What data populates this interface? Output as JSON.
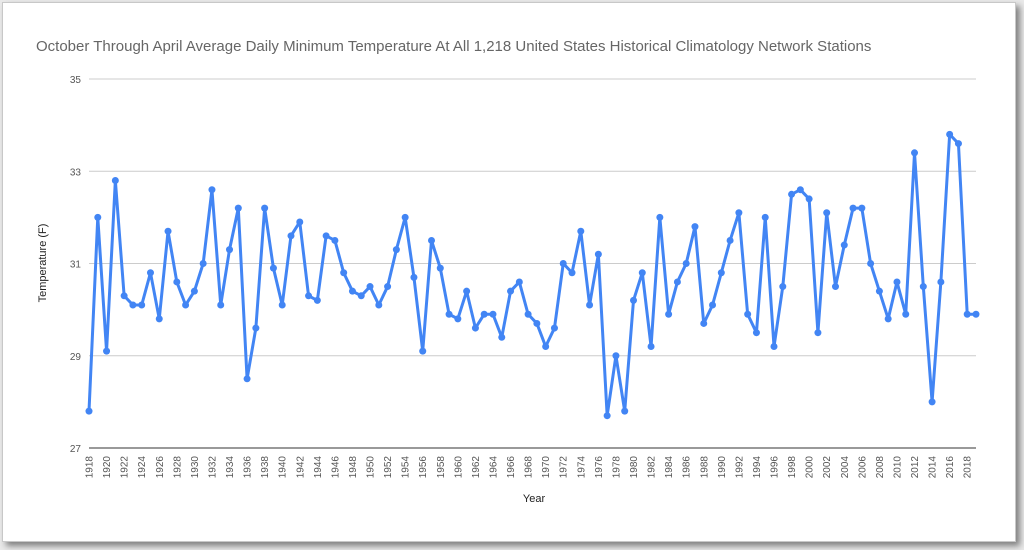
{
  "chart_data": {
    "type": "line",
    "title": "October Through April Average Daily Minimum Temperature At All 1,218 United States Historical Climatology Network Stations",
    "xlabel": "Year",
    "ylabel": "Temperature (F)",
    "ylim": [
      27,
      35
    ],
    "yticks": [
      27,
      29,
      31,
      33,
      35
    ],
    "xticks": [
      1918,
      1920,
      1922,
      1924,
      1926,
      1928,
      1930,
      1932,
      1934,
      1936,
      1938,
      1940,
      1942,
      1944,
      1946,
      1948,
      1950,
      1952,
      1954,
      1956,
      1958,
      1960,
      1962,
      1964,
      1966,
      1968,
      1970,
      1972,
      1974,
      1976,
      1978,
      1980,
      1982,
      1984,
      1986,
      1988,
      1990,
      1992,
      1994,
      1996,
      1998,
      2000,
      2002,
      2004,
      2006,
      2008,
      2010,
      2012,
      2014,
      2016,
      2018
    ],
    "grid": true,
    "color": "#4285f4",
    "series": [
      {
        "x": [
          1918,
          1919,
          1920,
          1921,
          1922,
          1923,
          1924,
          1925,
          1926,
          1927,
          1928,
          1929,
          1930,
          1931,
          1932,
          1933,
          1934,
          1935,
          1936,
          1937,
          1938,
          1939,
          1940,
          1941,
          1942,
          1943,
          1944,
          1945,
          1946,
          1947,
          1948,
          1949,
          1950,
          1951,
          1952,
          1953,
          1954,
          1955,
          1956,
          1957,
          1958,
          1959,
          1960,
          1961,
          1962,
          1963,
          1964,
          1965,
          1966,
          1967,
          1968,
          1969,
          1970,
          1971,
          1972,
          1973,
          1974,
          1975,
          1976,
          1977,
          1978,
          1979,
          1980,
          1981,
          1982,
          1983,
          1984,
          1985,
          1986,
          1987,
          1988,
          1989,
          1990,
          1991,
          1992,
          1993,
          1994,
          1995,
          1996,
          1997,
          1998,
          1999,
          2000,
          2001,
          2002,
          2003,
          2004,
          2005,
          2006,
          2007,
          2008,
          2009,
          2010,
          2011,
          2012,
          2013,
          2014,
          2015,
          2016,
          2017,
          2018,
          2019
        ],
        "values": [
          27.8,
          32.0,
          29.1,
          32.8,
          30.3,
          30.1,
          30.1,
          30.8,
          29.8,
          31.7,
          30.6,
          30.1,
          30.4,
          31.0,
          32.6,
          30.1,
          31.3,
          32.2,
          28.5,
          29.6,
          32.2,
          30.9,
          30.1,
          31.6,
          31.9,
          30.3,
          30.2,
          31.6,
          31.5,
          30.8,
          30.4,
          30.3,
          30.5,
          30.1,
          30.5,
          31.3,
          32.0,
          30.7,
          29.1,
          31.5,
          30.9,
          29.9,
          29.8,
          30.4,
          29.6,
          29.9,
          29.9,
          29.4,
          30.4,
          30.6,
          29.9,
          29.7,
          29.2,
          29.6,
          31.0,
          30.8,
          31.7,
          30.1,
          31.2,
          27.7,
          29.0,
          27.8,
          30.2,
          30.8,
          29.2,
          32.0,
          29.9,
          30.6,
          31.0,
          31.8,
          29.7,
          30.1,
          30.8,
          31.5,
          32.1,
          29.9,
          29.5,
          32.0,
          29.2,
          30.5,
          32.5,
          32.6,
          32.4,
          29.5,
          32.1,
          30.5,
          31.4,
          32.2,
          32.2,
          31.0,
          30.4,
          29.8,
          30.6,
          29.9,
          33.4,
          30.5,
          28.0,
          30.6,
          33.8,
          33.6,
          29.9,
          29.9
        ]
      }
    ]
  }
}
